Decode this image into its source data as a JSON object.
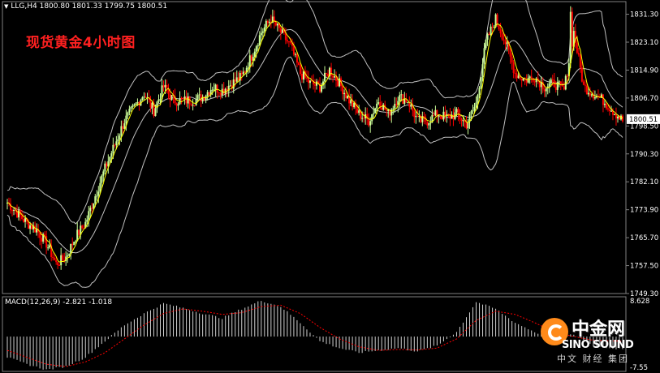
{
  "header": {
    "symbol_line": "LLG,H4  1800.80 1801.33 1799.75 1800.51",
    "caption": "现货黄金4小时图"
  },
  "macd": {
    "label": "MACD(12,26,9) -2.821 -1.018",
    "axis_top": "8.628",
    "axis_bottom": "-7.55"
  },
  "watermark": {
    "cn": "中金网",
    "en": "SINO SOUND",
    "sub": "中文 财经 集团"
  },
  "colors": {
    "background": "#000000",
    "bull_candle": "#ccff99",
    "bear_candle": "#ff0000",
    "ma_line": "#ffff00",
    "bands": "#c0c0c0",
    "macd_hist": "#d0d0d0",
    "macd_signal": "#ff0000",
    "price_box": "#ffffff"
  },
  "chart_data": {
    "type": "candlestick",
    "y_ticks": [
      "1831.30",
      "1823.10",
      "1814.90",
      "1806.70",
      "1798.50",
      "1790.30",
      "1782.10",
      "1773.90",
      "1765.70",
      "1757.50",
      "1749.30"
    ],
    "ylim": [
      1749.3,
      1835.0
    ],
    "current_price": "1800.51",
    "close_path": [
      [
        0,
        1776
      ],
      [
        6,
        1773
      ],
      [
        12,
        1770
      ],
      [
        18,
        1768
      ],
      [
        24,
        1764
      ],
      [
        30,
        1758
      ],
      [
        36,
        1760
      ],
      [
        42,
        1766
      ],
      [
        48,
        1770
      ],
      [
        54,
        1778
      ],
      [
        60,
        1786
      ],
      [
        66,
        1793
      ],
      [
        72,
        1800
      ],
      [
        78,
        1804
      ],
      [
        84,
        1808
      ],
      [
        90,
        1803
      ],
      [
        96,
        1810
      ],
      [
        102,
        1806
      ],
      [
        108,
        1806
      ],
      [
        114,
        1806
      ],
      [
        120,
        1807
      ],
      [
        126,
        1810
      ],
      [
        132,
        1809
      ],
      [
        138,
        1811
      ],
      [
        144,
        1813
      ],
      [
        150,
        1819
      ],
      [
        156,
        1826
      ],
      [
        162,
        1830
      ],
      [
        168,
        1826
      ],
      [
        174,
        1822
      ],
      [
        180,
        1814
      ],
      [
        186,
        1811
      ],
      [
        192,
        1810
      ],
      [
        198,
        1815
      ],
      [
        204,
        1811
      ],
      [
        210,
        1806
      ],
      [
        216,
        1802
      ],
      [
        222,
        1800
      ],
      [
        228,
        1806
      ],
      [
        234,
        1802
      ],
      [
        240,
        1807
      ],
      [
        246,
        1806
      ],
      [
        252,
        1800
      ],
      [
        258,
        1800
      ],
      [
        264,
        1802
      ],
      [
        270,
        1801
      ],
      [
        276,
        1802
      ],
      [
        282,
        1799
      ],
      [
        288,
        1805
      ],
      [
        294,
        1823
      ],
      [
        300,
        1830
      ],
      [
        306,
        1823
      ],
      [
        312,
        1814
      ],
      [
        318,
        1812
      ],
      [
        324,
        1813
      ],
      [
        330,
        1810
      ],
      [
        336,
        1811
      ],
      [
        342,
        1809
      ],
      [
        348,
        1826
      ],
      [
        354,
        1810
      ],
      [
        360,
        1808
      ],
      [
        366,
        1806
      ],
      [
        372,
        1803
      ],
      [
        378,
        1800
      ]
    ],
    "spikes": [
      [
        346,
        1832
      ],
      [
        350,
        1820
      ]
    ],
    "macd_hist_path": [
      [
        0,
        -4.5
      ],
      [
        12,
        -6.0
      ],
      [
        24,
        -7.2
      ],
      [
        36,
        -6.5
      ],
      [
        48,
        -4.5
      ],
      [
        60,
        -1.0
      ],
      [
        72,
        2.5
      ],
      [
        84,
        5.0
      ],
      [
        96,
        7.2
      ],
      [
        108,
        6.2
      ],
      [
        120,
        5.0
      ],
      [
        132,
        4.0
      ],
      [
        144,
        6.0
      ],
      [
        156,
        7.8
      ],
      [
        168,
        6.5
      ],
      [
        180,
        3.0
      ],
      [
        192,
        -1.0
      ],
      [
        204,
        -2.5
      ],
      [
        216,
        -3.5
      ],
      [
        228,
        -3.0
      ],
      [
        240,
        -2.5
      ],
      [
        252,
        -3.2
      ],
      [
        264,
        -2.0
      ],
      [
        276,
        1.0
      ],
      [
        288,
        7.5
      ],
      [
        300,
        6.0
      ],
      [
        312,
        3.0
      ],
      [
        324,
        1.0
      ],
      [
        336,
        -0.5
      ],
      [
        348,
        0.5
      ],
      [
        360,
        -2.0
      ],
      [
        378,
        -2.8
      ]
    ],
    "macd_signal_path": [
      [
        0,
        -3.0
      ],
      [
        12,
        -4.5
      ],
      [
        24,
        -6.0
      ],
      [
        36,
        -6.5
      ],
      [
        48,
        -5.5
      ],
      [
        60,
        -3.5
      ],
      [
        72,
        -0.5
      ],
      [
        84,
        2.5
      ],
      [
        96,
        5.0
      ],
      [
        108,
        6.0
      ],
      [
        120,
        5.5
      ],
      [
        132,
        4.8
      ],
      [
        144,
        5.2
      ],
      [
        156,
        6.5
      ],
      [
        168,
        6.8
      ],
      [
        180,
        5.0
      ],
      [
        192,
        2.0
      ],
      [
        204,
        -0.5
      ],
      [
        216,
        -2.2
      ],
      [
        228,
        -3.0
      ],
      [
        240,
        -2.8
      ],
      [
        252,
        -2.9
      ],
      [
        264,
        -2.5
      ],
      [
        276,
        -0.5
      ],
      [
        288,
        3.5
      ],
      [
        300,
        5.5
      ],
      [
        312,
        4.8
      ],
      [
        324,
        3.0
      ],
      [
        336,
        1.0
      ],
      [
        348,
        0.0
      ],
      [
        360,
        -0.8
      ],
      [
        378,
        -1.0
      ]
    ],
    "macd_ylim": [
      -7.55,
      8.628
    ]
  }
}
